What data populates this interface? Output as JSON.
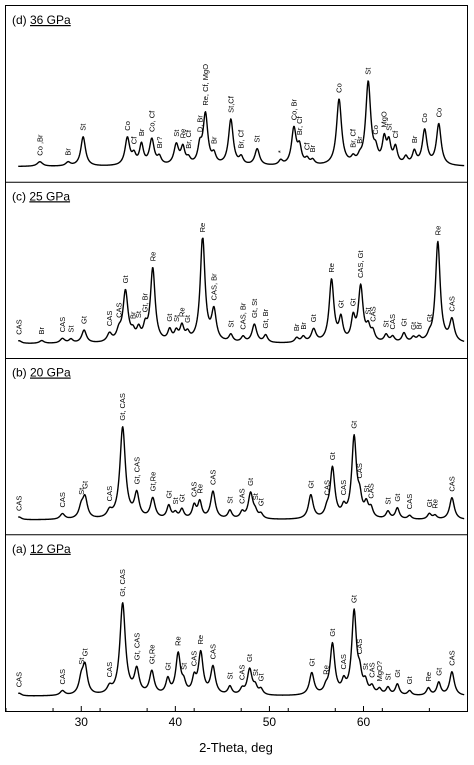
{
  "chart_data": {
    "type": "line",
    "xlabel": "2-Theta, deg",
    "xlim": [
      22,
      71
    ],
    "xticks": [
      30,
      40,
      50,
      60
    ],
    "grid": false,
    "panels": [
      {
        "title_prefix": "(d) ",
        "title_underlined": "36 GPa",
        "baseline": 0.04,
        "peaks": [
          {
            "x": 25.6,
            "h": 0.05,
            "w": 0.35,
            "label": "Co ,Br"
          },
          {
            "x": 28.6,
            "h": 0.04,
            "w": 0.3,
            "label": "Br"
          },
          {
            "x": 30.2,
            "h": 0.32,
            "w": 0.3,
            "label": "St"
          },
          {
            "x": 34.9,
            "h": 0.3,
            "w": 0.3,
            "label": "Co"
          },
          {
            "x": 35.6,
            "h": 0.1,
            "w": 0.25,
            "label": "Cf"
          },
          {
            "x": 36.4,
            "h": 0.22,
            "w": 0.25,
            "label": "Br"
          },
          {
            "x": 37.5,
            "h": 0.28,
            "w": 0.3,
            "label": "Co, Cf"
          },
          {
            "x": 38.3,
            "h": 0.08,
            "w": 0.25,
            "label": "Br?"
          },
          {
            "x": 40.1,
            "h": 0.22,
            "w": 0.3,
            "label": "St"
          },
          {
            "x": 40.8,
            "h": 0.18,
            "w": 0.25,
            "label": "Re"
          },
          {
            "x": 41.4,
            "h": 0.06,
            "w": 0.25,
            "label": "Br, Cf"
          },
          {
            "x": 42.6,
            "h": 0.18,
            "w": 0.25,
            "label": "D, Br"
          },
          {
            "x": 43.2,
            "h": 0.55,
            "w": 0.3,
            "label": "Re, Cf, MgO"
          },
          {
            "x": 44.1,
            "h": 0.1,
            "w": 0.25,
            "label": "Br"
          },
          {
            "x": 45.9,
            "h": 0.5,
            "w": 0.3,
            "label": "St,Cf"
          },
          {
            "x": 47.0,
            "h": 0.08,
            "w": 0.25,
            "label": "Br, Cf"
          },
          {
            "x": 48.7,
            "h": 0.18,
            "w": 0.3,
            "label": "St"
          },
          {
            "x": 51.2,
            "h": 0.05,
            "w": 0.25,
            "label": "*"
          },
          {
            "x": 52.6,
            "h": 0.4,
            "w": 0.3,
            "label": "Co, Br"
          },
          {
            "x": 53.2,
            "h": 0.18,
            "w": 0.25,
            "label": "Br, Cf"
          },
          {
            "x": 54.0,
            "h": 0.06,
            "w": 0.25,
            "label": "Cf"
          },
          {
            "x": 54.6,
            "h": 0.05,
            "w": 0.25,
            "label": "Br"
          },
          {
            "x": 57.4,
            "h": 0.72,
            "w": 0.32,
            "label": "Co"
          },
          {
            "x": 58.9,
            "h": 0.06,
            "w": 0.25,
            "label": "Br, Cf"
          },
          {
            "x": 59.6,
            "h": 0.05,
            "w": 0.25,
            "label": "Br"
          },
          {
            "x": 60.5,
            "h": 0.9,
            "w": 0.32,
            "label": "St"
          },
          {
            "x": 61.3,
            "h": 0.12,
            "w": 0.25,
            "label": "Co"
          },
          {
            "x": 62.2,
            "h": 0.26,
            "w": 0.25,
            "label": "MgO"
          },
          {
            "x": 62.7,
            "h": 0.22,
            "w": 0.25,
            "label": "St"
          },
          {
            "x": 63.4,
            "h": 0.18,
            "w": 0.25,
            "label": "Cf"
          },
          {
            "x": 64.5,
            "h": 0.08,
            "w": 0.25,
            "label": ""
          },
          {
            "x": 65.4,
            "h": 0.14,
            "w": 0.25,
            "label": "Br"
          },
          {
            "x": 66.5,
            "h": 0.38,
            "w": 0.3,
            "label": "Co"
          },
          {
            "x": 68.0,
            "h": 0.45,
            "w": 0.3,
            "label": "Co"
          }
        ]
      },
      {
        "title_prefix": "(c) ",
        "title_underlined": "25 GPa",
        "baseline": 0.03,
        "peaks": [
          {
            "x": 23.4,
            "h": 0.03,
            "w": 0.3,
            "label": "CAS"
          },
          {
            "x": 25.8,
            "h": 0.03,
            "w": 0.3,
            "label": "Br"
          },
          {
            "x": 28.0,
            "h": 0.05,
            "w": 0.3,
            "label": "CAS"
          },
          {
            "x": 28.9,
            "h": 0.04,
            "w": 0.25,
            "label": "St"
          },
          {
            "x": 30.3,
            "h": 0.14,
            "w": 0.3,
            "label": "Gt"
          },
          {
            "x": 33.0,
            "h": 0.09,
            "w": 0.3,
            "label": "CAS"
          },
          {
            "x": 34.0,
            "h": 0.1,
            "w": 0.3,
            "label": "CAS"
          },
          {
            "x": 34.7,
            "h": 0.55,
            "w": 0.32,
            "label": "Gt"
          },
          {
            "x": 35.5,
            "h": 0.08,
            "w": 0.25,
            "label": "Br"
          },
          {
            "x": 36.1,
            "h": 0.12,
            "w": 0.25,
            "label": "St"
          },
          {
            "x": 36.8,
            "h": 0.14,
            "w": 0.25,
            "label": "Gt, Br"
          },
          {
            "x": 37.6,
            "h": 0.8,
            "w": 0.3,
            "label": "Re"
          },
          {
            "x": 39.4,
            "h": 0.12,
            "w": 0.25,
            "label": "Gt"
          },
          {
            "x": 40.1,
            "h": 0.1,
            "w": 0.25,
            "label": "St"
          },
          {
            "x": 40.7,
            "h": 0.16,
            "w": 0.25,
            "label": "Re"
          },
          {
            "x": 41.3,
            "h": 0.08,
            "w": 0.25,
            "label": "Gt"
          },
          {
            "x": 42.9,
            "h": 1.15,
            "w": 0.3,
            "label": "Re"
          },
          {
            "x": 44.1,
            "h": 0.33,
            "w": 0.3,
            "label": "CAS, Br"
          },
          {
            "x": 45.9,
            "h": 0.08,
            "w": 0.25,
            "label": "St"
          },
          {
            "x": 47.2,
            "h": 0.06,
            "w": 0.25,
            "label": "CAS, Br"
          },
          {
            "x": 48.4,
            "h": 0.2,
            "w": 0.3,
            "label": "Gt, St"
          },
          {
            "x": 49.6,
            "h": 0.08,
            "w": 0.25,
            "label": "Gt, Br"
          },
          {
            "x": 52.9,
            "h": 0.05,
            "w": 0.25,
            "label": "Br"
          },
          {
            "x": 53.6,
            "h": 0.06,
            "w": 0.25,
            "label": "Br"
          },
          {
            "x": 54.7,
            "h": 0.14,
            "w": 0.3,
            "label": "Gt"
          },
          {
            "x": 56.6,
            "h": 0.68,
            "w": 0.3,
            "label": "Re"
          },
          {
            "x": 57.6,
            "h": 0.24,
            "w": 0.25,
            "label": "Gt"
          },
          {
            "x": 58.9,
            "h": 0.24,
            "w": 0.25,
            "label": "Gt"
          },
          {
            "x": 59.7,
            "h": 0.6,
            "w": 0.3,
            "label": "CAS, Gt"
          },
          {
            "x": 60.5,
            "h": 0.14,
            "w": 0.25,
            "label": "St"
          },
          {
            "x": 61.0,
            "h": 0.1,
            "w": 0.25,
            "label": "CAS"
          },
          {
            "x": 62.4,
            "h": 0.08,
            "w": 0.25,
            "label": "St"
          },
          {
            "x": 63.1,
            "h": 0.06,
            "w": 0.25,
            "label": "CAS"
          },
          {
            "x": 64.3,
            "h": 0.1,
            "w": 0.25,
            "label": "Gt"
          },
          {
            "x": 65.3,
            "h": 0.05,
            "w": 0.25,
            "label": "Gt"
          },
          {
            "x": 65.9,
            "h": 0.05,
            "w": 0.25,
            "label": "Br"
          },
          {
            "x": 67.0,
            "h": 0.05,
            "w": 0.25,
            "label": "Gt"
          },
          {
            "x": 67.9,
            "h": 1.1,
            "w": 0.3,
            "label": "Re"
          },
          {
            "x": 69.4,
            "h": 0.24,
            "w": 0.3,
            "label": "CAS"
          }
        ]
      },
      {
        "title_prefix": "(b) ",
        "title_underlined": "20 GPa",
        "baseline": 0.03,
        "peaks": [
          {
            "x": 23.4,
            "h": 0.03,
            "w": 0.3,
            "label": "CAS"
          },
          {
            "x": 28.0,
            "h": 0.06,
            "w": 0.3,
            "label": "CAS"
          },
          {
            "x": 30.0,
            "h": 0.12,
            "w": 0.3,
            "label": "St"
          },
          {
            "x": 30.4,
            "h": 0.22,
            "w": 0.3,
            "label": "Gt"
          },
          {
            "x": 33.0,
            "h": 0.07,
            "w": 0.3,
            "label": "CAS"
          },
          {
            "x": 34.4,
            "h": 1.0,
            "w": 0.35,
            "label": "Gt, CAS"
          },
          {
            "x": 35.9,
            "h": 0.26,
            "w": 0.3,
            "label": "Gt, CAS"
          },
          {
            "x": 37.6,
            "h": 0.22,
            "w": 0.3,
            "label": "Gt,Re"
          },
          {
            "x": 39.3,
            "h": 0.14,
            "w": 0.25,
            "label": "Gt"
          },
          {
            "x": 40.0,
            "h": 0.06,
            "w": 0.25,
            "label": "St"
          },
          {
            "x": 40.7,
            "h": 0.1,
            "w": 0.25,
            "label": "Gt"
          },
          {
            "x": 42.0,
            "h": 0.14,
            "w": 0.25,
            "label": "CAS"
          },
          {
            "x": 42.6,
            "h": 0.18,
            "w": 0.25,
            "label": "Re"
          },
          {
            "x": 44.0,
            "h": 0.3,
            "w": 0.3,
            "label": "CAS"
          },
          {
            "x": 45.8,
            "h": 0.09,
            "w": 0.25,
            "label": "St"
          },
          {
            "x": 47.1,
            "h": 0.07,
            "w": 0.25,
            "label": "CAS"
          },
          {
            "x": 48.0,
            "h": 0.28,
            "w": 0.3,
            "label": "Gt"
          },
          {
            "x": 48.5,
            "h": 0.06,
            "w": 0.25,
            "label": "St"
          },
          {
            "x": 49.1,
            "h": 0.05,
            "w": 0.25,
            "label": "Gt"
          },
          {
            "x": 54.4,
            "h": 0.26,
            "w": 0.3,
            "label": "Gt"
          },
          {
            "x": 56.1,
            "h": 0.07,
            "w": 0.25,
            "label": "CAS"
          },
          {
            "x": 56.7,
            "h": 0.55,
            "w": 0.3,
            "label": "Gt"
          },
          {
            "x": 57.9,
            "h": 0.1,
            "w": 0.25,
            "label": "CAS"
          },
          {
            "x": 59.0,
            "h": 0.88,
            "w": 0.3,
            "label": "Gt"
          },
          {
            "x": 59.6,
            "h": 0.18,
            "w": 0.25,
            "label": "CAS"
          },
          {
            "x": 60.3,
            "h": 0.14,
            "w": 0.25,
            "label": "St"
          },
          {
            "x": 60.8,
            "h": 0.1,
            "w": 0.25,
            "label": "CAS"
          },
          {
            "x": 62.6,
            "h": 0.08,
            "w": 0.25,
            "label": "St"
          },
          {
            "x": 63.6,
            "h": 0.12,
            "w": 0.25,
            "label": "Gt"
          },
          {
            "x": 64.9,
            "h": 0.04,
            "w": 0.25,
            "label": "CAS"
          },
          {
            "x": 67.0,
            "h": 0.06,
            "w": 0.25,
            "label": "Gt"
          },
          {
            "x": 67.6,
            "h": 0.04,
            "w": 0.25,
            "label": "Re"
          },
          {
            "x": 69.4,
            "h": 0.24,
            "w": 0.3,
            "label": "CAS"
          }
        ]
      },
      {
        "title_prefix": "(a) ",
        "title_underlined": "12 GPa",
        "baseline": 0.03,
        "peaks": [
          {
            "x": 23.4,
            "h": 0.03,
            "w": 0.3,
            "label": "CAS"
          },
          {
            "x": 28.0,
            "h": 0.05,
            "w": 0.3,
            "label": "CAS"
          },
          {
            "x": 30.0,
            "h": 0.16,
            "w": 0.3,
            "label": "St"
          },
          {
            "x": 30.4,
            "h": 0.3,
            "w": 0.3,
            "label": "Gt"
          },
          {
            "x": 33.0,
            "h": 0.07,
            "w": 0.3,
            "label": "CAS"
          },
          {
            "x": 34.4,
            "h": 1.0,
            "w": 0.35,
            "label": "Gt, CAS"
          },
          {
            "x": 35.9,
            "h": 0.26,
            "w": 0.3,
            "label": "Gt, CAS"
          },
          {
            "x": 37.5,
            "h": 0.25,
            "w": 0.3,
            "label": "Gt,Re"
          },
          {
            "x": 39.2,
            "h": 0.16,
            "w": 0.25,
            "label": "Gt"
          },
          {
            "x": 40.3,
            "h": 0.44,
            "w": 0.3,
            "label": "Re"
          },
          {
            "x": 40.9,
            "h": 0.1,
            "w": 0.25,
            "label": "St"
          },
          {
            "x": 42.0,
            "h": 0.16,
            "w": 0.25,
            "label": "CAS"
          },
          {
            "x": 42.7,
            "h": 0.45,
            "w": 0.3,
            "label": "Re"
          },
          {
            "x": 44.0,
            "h": 0.3,
            "w": 0.3,
            "label": "CAS"
          },
          {
            "x": 45.8,
            "h": 0.09,
            "w": 0.25,
            "label": "St"
          },
          {
            "x": 47.1,
            "h": 0.06,
            "w": 0.25,
            "label": "CAS"
          },
          {
            "x": 47.9,
            "h": 0.28,
            "w": 0.3,
            "label": "Gt"
          },
          {
            "x": 48.5,
            "h": 0.08,
            "w": 0.25,
            "label": "St"
          },
          {
            "x": 49.1,
            "h": 0.06,
            "w": 0.25,
            "label": "Gt"
          },
          {
            "x": 54.5,
            "h": 0.24,
            "w": 0.3,
            "label": "Gt"
          },
          {
            "x": 56.0,
            "h": 0.06,
            "w": 0.25,
            "label": "Re"
          },
          {
            "x": 56.7,
            "h": 0.55,
            "w": 0.3,
            "label": "Gt"
          },
          {
            "x": 57.9,
            "h": 0.12,
            "w": 0.25,
            "label": "CAS"
          },
          {
            "x": 59.0,
            "h": 0.9,
            "w": 0.3,
            "label": "Gt"
          },
          {
            "x": 59.6,
            "h": 0.18,
            "w": 0.25,
            "label": "CAS"
          },
          {
            "x": 60.2,
            "h": 0.12,
            "w": 0.25,
            "label": "St"
          },
          {
            "x": 60.9,
            "h": 0.08,
            "w": 0.25,
            "label": "CAS"
          },
          {
            "x": 61.7,
            "h": 0.06,
            "w": 0.25,
            "label": "MgO?"
          },
          {
            "x": 62.6,
            "h": 0.08,
            "w": 0.25,
            "label": "St"
          },
          {
            "x": 63.6,
            "h": 0.12,
            "w": 0.25,
            "label": "Gt"
          },
          {
            "x": 64.9,
            "h": 0.05,
            "w": 0.25,
            "label": "Gt"
          },
          {
            "x": 66.9,
            "h": 0.08,
            "w": 0.25,
            "label": "Re"
          },
          {
            "x": 68.0,
            "h": 0.14,
            "w": 0.25,
            "label": "Gt"
          },
          {
            "x": 69.4,
            "h": 0.26,
            "w": 0.3,
            "label": "CAS"
          }
        ]
      }
    ]
  }
}
